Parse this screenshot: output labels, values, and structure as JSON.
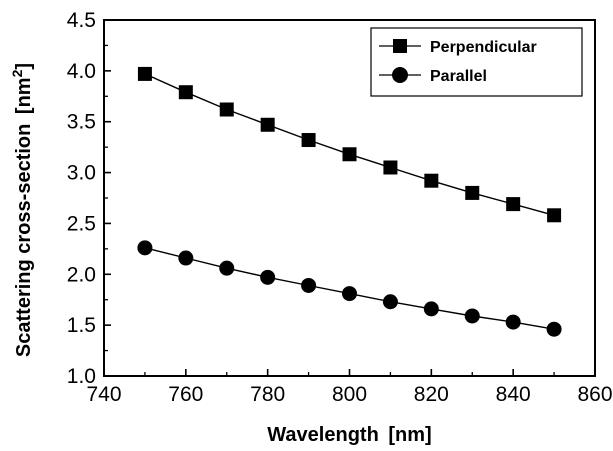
{
  "chart_data": {
    "type": "line",
    "title": "",
    "xlabel": "Wavelength [nm]",
    "ylabel": "Scattering cross-section [nm²]",
    "xlabel_main": "Wavelength",
    "xlabel_unit": "nm",
    "ylabel_main": "Scattering cross-section",
    "ylabel_unit": "nm",
    "ylabel_unit_exp": "2",
    "xlim": [
      740,
      860
    ],
    "ylim": [
      1.0,
      4.5
    ],
    "xticks": [
      "740",
      "760",
      "780",
      "800",
      "820",
      "840",
      "860"
    ],
    "yticks": [
      "1.0",
      "1.5",
      "2.0",
      "2.5",
      "3.0",
      "3.5",
      "4.0",
      "4.5"
    ],
    "x": [
      750,
      760,
      770,
      780,
      790,
      800,
      810,
      820,
      830,
      840,
      850
    ],
    "series": [
      {
        "name": "Perpendicular",
        "marker": "square",
        "color": "#000000",
        "values": [
          3.97,
          3.79,
          3.62,
          3.47,
          3.32,
          3.18,
          3.05,
          2.92,
          2.8,
          2.69,
          2.58
        ]
      },
      {
        "name": "Parallel",
        "marker": "circle",
        "color": "#000000",
        "values": [
          2.26,
          2.16,
          2.06,
          1.97,
          1.89,
          1.81,
          1.73,
          1.66,
          1.59,
          1.53,
          1.46
        ]
      }
    ],
    "grid": false,
    "legend_position": "top-right"
  }
}
